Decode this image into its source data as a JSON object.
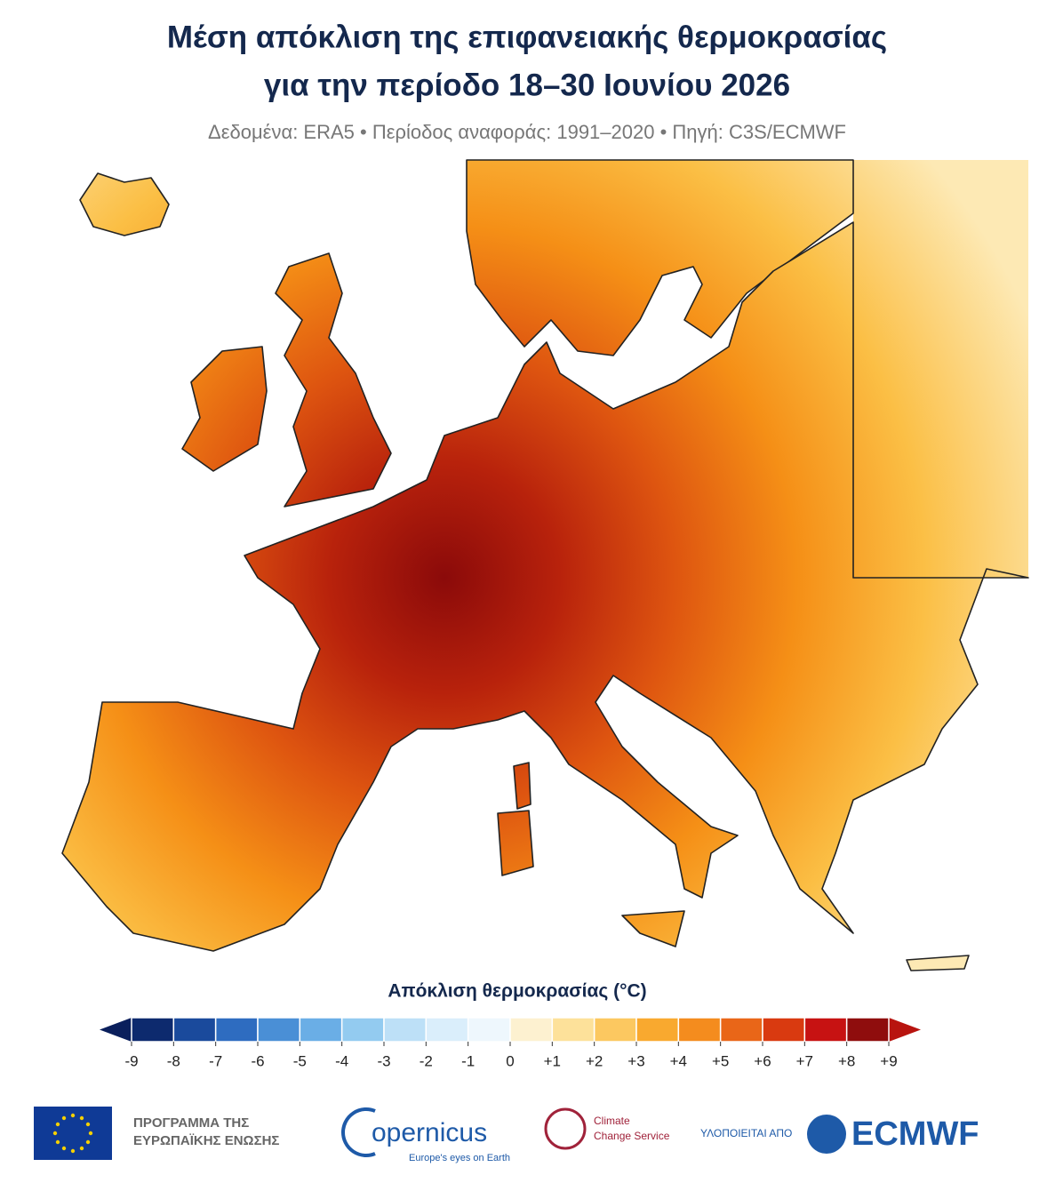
{
  "header": {
    "title_lines": [
      "Μέση απόκλιση της επιφανειακής θερμοκρασίας",
      "για την περίοδο 18–30 Ιουνίου 2026"
    ],
    "subtitle": "Δεδομένα: ERA5 • Περίοδος αναφοράς: 1991–2020 • Πηγή: C3S/ECMWF"
  },
  "colorbar": {
    "label": "Απόκλιση θερμοκρασίας (°C)",
    "lim": [
      -9,
      9
    ],
    "ticks": [
      -9,
      -8,
      -7,
      -6,
      -5,
      -4,
      -3,
      -2,
      -1,
      0,
      {
        "value": 1,
        "label": "+1"
      },
      {
        "value": 2,
        "label": "+2"
      },
      {
        "value": 3,
        "label": "+3"
      },
      {
        "value": 4,
        "label": "+4"
      },
      {
        "value": 5,
        "label": "+5"
      },
      {
        "value": 6,
        "label": "+6"
      },
      {
        "value": 7,
        "label": "+7"
      },
      {
        "value": 8,
        "label": "+8"
      },
      {
        "value": 9,
        "label": "+9"
      }
    ],
    "colors": [
      "#0d2a6e",
      "#1a4a9c",
      "#2e6cc0",
      "#4a8fd6",
      "#6aaee6",
      "#93cbf0",
      "#bde0f7",
      "#daeefb",
      "#eef7fd",
      "#fdf1d0",
      "#fde19a",
      "#fcc860",
      "#f9a92f",
      "#f48c1e",
      "#e96618",
      "#d93a10",
      "#c71212",
      "#8f0d0d"
    ],
    "extend_colors": [
      "#0a1f5c",
      "#b8140f"
    ]
  },
  "footer": {
    "eu_lines": [
      "ΠΡΟΓΡΑΜΜΑ ΤΗΣ",
      "ΕΥΡΩΠΑΪΚΗΣ ΕΝΩΣΗΣ"
    ],
    "copernicus": "opernicus",
    "copernicus_tagline": "Europe's eyes on Earth",
    "c3s_lines": [
      "Climate",
      "Change Service"
    ],
    "implemented_by": "ΥΛΟΠΟΙΕΙΤΑΙ ΑΠΟ",
    "ecmwf": "ECMWF"
  }
}
